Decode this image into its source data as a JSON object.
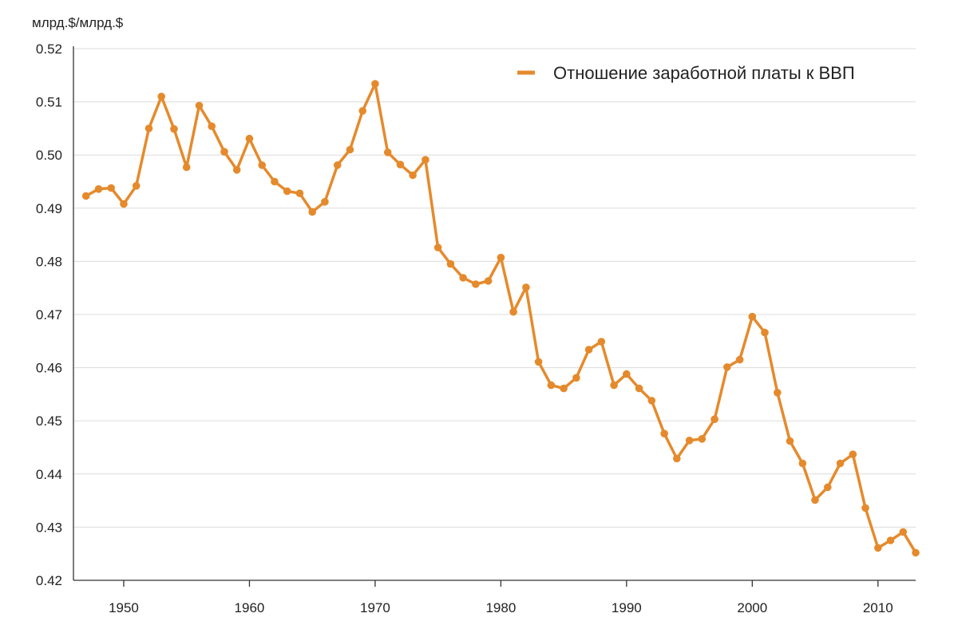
{
  "chart_data": {
    "type": "line",
    "unit_label": "млрд.$/млрд.$",
    "title": "",
    "xlabel": "",
    "ylabel": "",
    "xlim": [
      1946,
      2013
    ],
    "ylim": [
      0.42,
      0.52
    ],
    "x_ticks": [
      1950,
      1960,
      1970,
      1980,
      1990,
      2000,
      2010
    ],
    "y_ticks": [
      0.42,
      0.43,
      0.44,
      0.45,
      0.46,
      0.47,
      0.48,
      0.49,
      0.5,
      0.51,
      0.52
    ],
    "y_tick_labels": [
      "0.42",
      "0.43",
      "0.44",
      "0.45",
      "0.46",
      "0.47",
      "0.48",
      "0.49",
      "0.50",
      "0.51",
      "0.52"
    ],
    "x_tick_labels": [
      "1950",
      "1960",
      "1970",
      "1980",
      "1990",
      "2000",
      "2010"
    ],
    "grid": "horizontal",
    "legend_position": "top-right",
    "series": [
      {
        "name": "Отношение заработной платы к ВВП",
        "color": "#e58a2c",
        "x": [
          1947,
          1948,
          1949,
          1950,
          1951,
          1952,
          1953,
          1954,
          1955,
          1956,
          1957,
          1958,
          1959,
          1960,
          1961,
          1962,
          1963,
          1964,
          1965,
          1966,
          1967,
          1968,
          1969,
          1970,
          1971,
          1972,
          1973,
          1974,
          1975,
          1976,
          1977,
          1978,
          1979,
          1980,
          1981,
          1982,
          1983,
          1984,
          1985,
          1986,
          1987,
          1988,
          1989,
          1990,
          1991,
          1992,
          1993,
          1994,
          1995,
          1996,
          1997,
          1998,
          1999,
          2000,
          2001,
          2002,
          2003,
          2004,
          2005,
          2006,
          2007,
          2008,
          2009,
          2010,
          2011,
          2012,
          2013
        ],
        "values": [
          0.4923,
          0.4936,
          0.4938,
          0.4908,
          0.4942,
          0.505,
          0.511,
          0.5049,
          0.4977,
          0.5093,
          0.5054,
          0.5006,
          0.4972,
          0.5031,
          0.4981,
          0.495,
          0.4932,
          0.4928,
          0.4893,
          0.4912,
          0.4981,
          0.501,
          0.5083,
          0.5134,
          0.5005,
          0.4982,
          0.4962,
          0.4991,
          0.4826,
          0.4795,
          0.4769,
          0.4757,
          0.4763,
          0.4807,
          0.4705,
          0.4751,
          0.4611,
          0.4567,
          0.4561,
          0.4581,
          0.4634,
          0.4649,
          0.4567,
          0.4588,
          0.4561,
          0.4538,
          0.4476,
          0.4429,
          0.4463,
          0.4466,
          0.4503,
          0.4601,
          0.4615,
          0.4696,
          0.4666,
          0.4553,
          0.4462,
          0.442,
          0.4351,
          0.4375,
          0.442,
          0.4437,
          0.4336,
          0.4261,
          0.4275,
          0.4291,
          0.4252
        ]
      }
    ]
  }
}
